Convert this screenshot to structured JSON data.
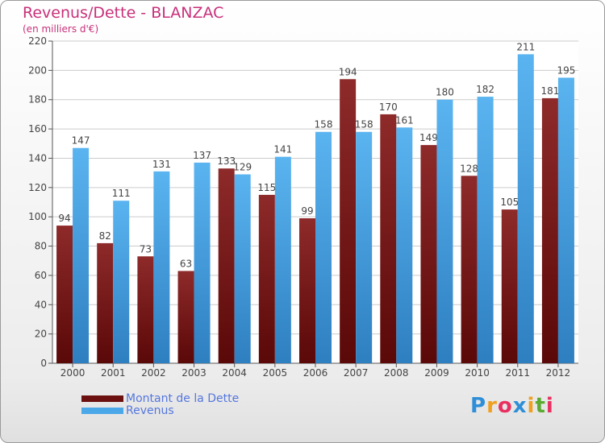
{
  "header": {
    "title": "Revenus/Dette - BLANZAC",
    "subtitle": "(en milliers d'€)"
  },
  "chart_data": {
    "type": "bar",
    "title": "Revenus/Dette - BLANZAC",
    "subtitle": "(en milliers d'€)",
    "categories": [
      "2000",
      "2001",
      "2002",
      "2003",
      "2004",
      "2005",
      "2006",
      "2007",
      "2008",
      "2009",
      "2010",
      "2011",
      "2012"
    ],
    "series": [
      {
        "name": "Montant de la Dette",
        "color": "#7a1c1c",
        "values": [
          94,
          82,
          73,
          63,
          133,
          115,
          99,
          194,
          170,
          149,
          128,
          105,
          181
        ]
      },
      {
        "name": "Revenus",
        "color": "#4aa8e8",
        "values": [
          147,
          111,
          131,
          137,
          129,
          141,
          158,
          158,
          161,
          180,
          182,
          211,
          195
        ]
      }
    ],
    "ylim": [
      0,
      220
    ],
    "yticks": [
      0,
      20,
      40,
      60,
      80,
      100,
      120,
      140,
      160,
      180,
      200,
      220
    ],
    "grid": true,
    "legend_position": "bottom-left",
    "data_labels": true
  },
  "legend": {
    "items": [
      {
        "label": "Montant de la Dette",
        "color": "#6b0f0f"
      },
      {
        "label": "Revenus",
        "color": "#4aa8e8"
      }
    ]
  },
  "logo": {
    "letters": [
      "P",
      "r",
      "o",
      "x",
      "i",
      "t",
      "i"
    ],
    "colors": [
      "#2e8fd8",
      "#f0a020",
      "#e83060",
      "#2e8fd8",
      "#f0a020",
      "#5aaa30",
      "#e83060"
    ]
  }
}
